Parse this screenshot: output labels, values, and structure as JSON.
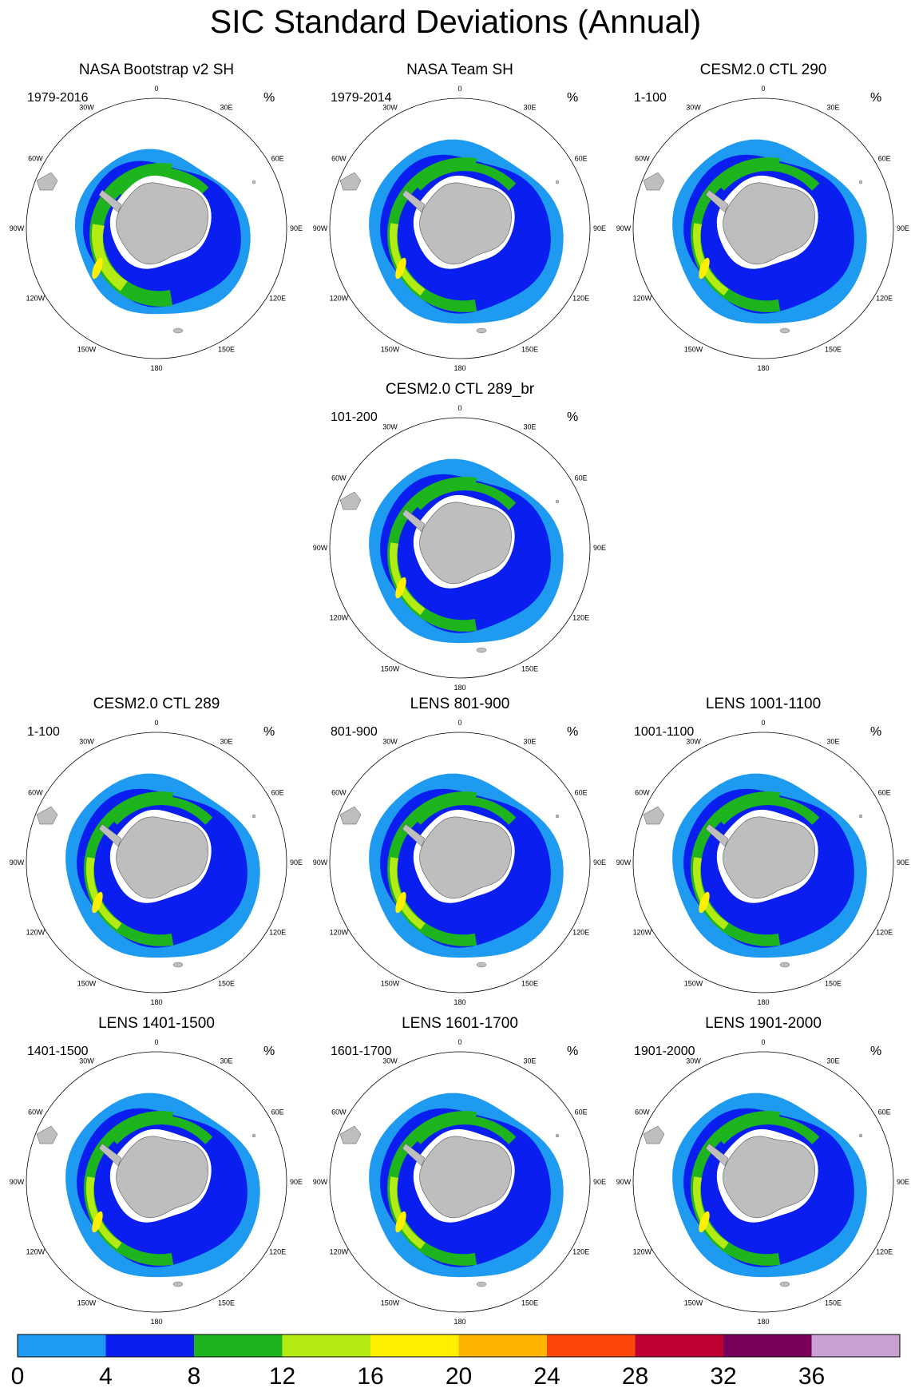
{
  "title": "SIC Standard Deviations (Annual)",
  "units": "%",
  "meridian_labels": [
    "0",
    "30E",
    "60E",
    "90E",
    "120E",
    "150E",
    "180",
    "150W",
    "120W",
    "90W",
    "60W",
    "30W"
  ],
  "panels": [
    {
      "title": "NASA Bootstrap v2 SH",
      "period": "1979-2016",
      "style": "obs"
    },
    {
      "title": "NASA Team SH",
      "period": "1979-2014",
      "style": "obs2"
    },
    {
      "title": "CESM2.0 CTL 290",
      "period": "1-100",
      "style": "model"
    },
    {
      "title": "CESM2.0 CTL 289_br",
      "period": "101-200",
      "style": "model"
    },
    {
      "title": "CESM2.0 CTL 289",
      "period": "1-100",
      "style": "model"
    },
    {
      "title": "LENS 801-900",
      "period": "801-900",
      "style": "model"
    },
    {
      "title": "LENS 1001-1100",
      "period": "1001-1100",
      "style": "model"
    },
    {
      "title": "LENS 1401-1500",
      "period": "1401-1500",
      "style": "model"
    },
    {
      "title": "LENS 1601-1700",
      "period": "1601-1700",
      "style": "model"
    },
    {
      "title": "LENS 1901-2000",
      "period": "1901-2000",
      "style": "model"
    }
  ],
  "colorbar": {
    "labels": [
      "0",
      "4",
      "8",
      "12",
      "16",
      "20",
      "24",
      "28",
      "32",
      "36"
    ],
    "colors": [
      "#1e9bf0",
      "#0a1ef0",
      "#1eb41e",
      "#b4eb14",
      "#fff000",
      "#ffb400",
      "#ff460a",
      "#be0032",
      "#78005a",
      "#c8a0d2"
    ]
  },
  "land_color": "#bebebe"
}
